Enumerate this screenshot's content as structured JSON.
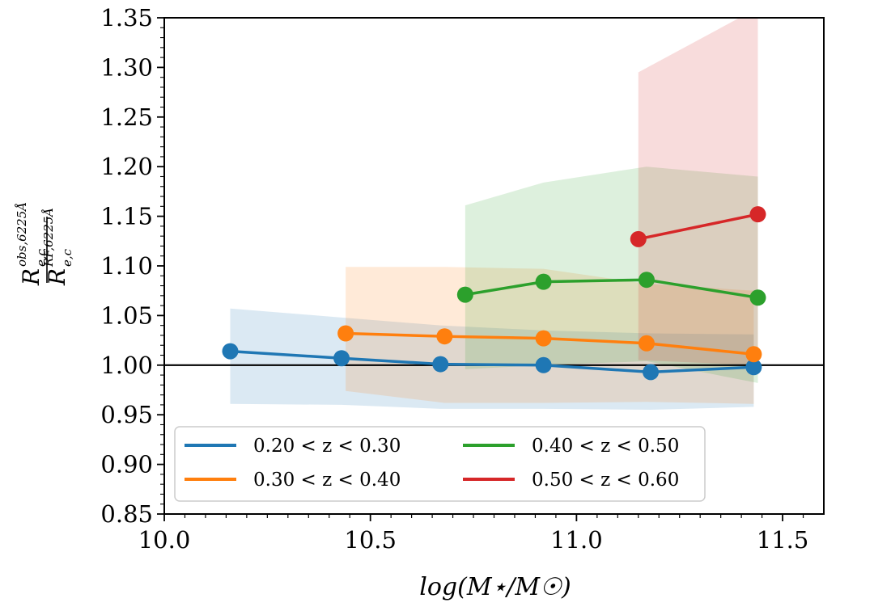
{
  "chart_data": {
    "type": "line",
    "title": "",
    "xlabel": "log(M⋆/M☉)",
    "ylabel": {
      "numerator": "R",
      "numerator_sub": "e,c",
      "numerator_sup": "obs,6225Å",
      "denominator": "R",
      "denominator_sub": "e,c",
      "denominator_sup": "RF,6225Å"
    },
    "xlim": [
      10.0,
      11.6
    ],
    "ylim": [
      0.85,
      1.35
    ],
    "xticks": [
      10.0,
      10.5,
      11.0,
      11.5
    ],
    "xtick_labels": [
      "10.0",
      "10.5",
      "11.0",
      "11.5"
    ],
    "yticks": [
      0.85,
      0.9,
      0.95,
      1.0,
      1.05,
      1.1,
      1.15,
      1.2,
      1.25,
      1.3,
      1.35
    ],
    "ytick_labels": [
      "0.85",
      "0.90",
      "0.95",
      "1.00",
      "1.05",
      "1.10",
      "1.15",
      "1.20",
      "1.25",
      "1.30",
      "1.35"
    ],
    "reference_line": 1.0,
    "legend_location": "lower-left",
    "series": [
      {
        "name": "0.20 < z < 0.30",
        "color": "#1f77b4",
        "x": [
          10.16,
          10.43,
          10.67,
          10.92,
          11.18,
          11.43
        ],
        "y": [
          1.014,
          1.007,
          1.001,
          1.0,
          0.993,
          0.998
        ],
        "band_x": [
          10.16,
          10.43,
          10.67,
          10.92,
          11.18,
          11.43
        ],
        "band_lower": [
          0.961,
          0.96,
          0.956,
          0.956,
          0.955,
          0.958
        ],
        "band_upper": [
          1.057,
          1.048,
          1.04,
          1.035,
          1.032,
          1.031
        ]
      },
      {
        "name": "0.30 < z < 0.40",
        "color": "#ff7f0e",
        "x": [
          10.44,
          10.68,
          10.92,
          11.17,
          11.43
        ],
        "y": [
          1.032,
          1.029,
          1.027,
          1.022,
          1.011
        ],
        "band_x": [
          10.44,
          10.68,
          10.92,
          11.17,
          11.43
        ],
        "band_lower": [
          0.974,
          0.962,
          0.962,
          0.963,
          0.961
        ],
        "band_upper": [
          1.099,
          1.099,
          1.097,
          1.082,
          1.075
        ]
      },
      {
        "name": "0.40 < z < 0.50",
        "color": "#2ca02c",
        "x": [
          10.73,
          10.92,
          11.17,
          11.44
        ],
        "y": [
          1.071,
          1.084,
          1.086,
          1.068
        ],
        "band_x": [
          10.73,
          10.92,
          11.17,
          11.44
        ],
        "band_lower": [
          0.996,
          1.0,
          1.004,
          0.982
        ],
        "band_upper": [
          1.161,
          1.184,
          1.2,
          1.19
        ]
      },
      {
        "name": "0.50 < z < 0.60",
        "color": "#d62728",
        "x": [
          11.15,
          11.44
        ],
        "y": [
          1.127,
          1.152
        ],
        "band_x": [
          11.15,
          11.44
        ],
        "band_lower": [
          1.005,
          1.0
        ],
        "band_upper": [
          1.295,
          1.36
        ]
      }
    ]
  }
}
